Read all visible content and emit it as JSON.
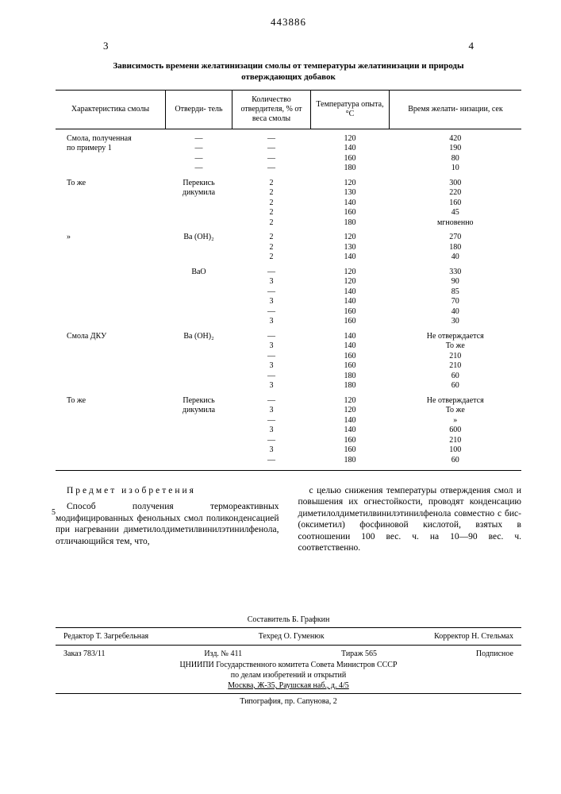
{
  "doc_number": "443886",
  "page_left": "3",
  "page_right": "4",
  "table_title_l1": "Зависимость времени желатинизации смолы от температуры желатинизации и природы",
  "table_title_l2": "отверждающих добавок",
  "columns": {
    "c1": "Характеристика смолы",
    "c2": "Отверди-\nтель",
    "c3": "Количество\nотвердителя,\n% от веса\nсмолы",
    "c4": "Температура\nопыта, °С",
    "c5": "Время желати-\nнизации, сек"
  },
  "rows": [
    {
      "a": "Смола, полученная",
      "b": "—",
      "c": "—",
      "d": "120",
      "e": "420"
    },
    {
      "a": "по примеру 1",
      "b": "—",
      "c": "—",
      "d": "140",
      "e": "190"
    },
    {
      "a": "",
      "b": "—",
      "c": "—",
      "d": "160",
      "e": "80"
    },
    {
      "a": "",
      "b": "—",
      "c": "—",
      "d": "180",
      "e": "10"
    },
    {
      "a": "То же",
      "b": "Перекись",
      "c": "2",
      "d": "120",
      "e": "300"
    },
    {
      "a": "",
      "b": "дикумила",
      "c": "2",
      "d": "130",
      "e": "220"
    },
    {
      "a": "",
      "b": "",
      "c": "2",
      "d": "140",
      "e": "160"
    },
    {
      "a": "",
      "b": "",
      "c": "2",
      "d": "160",
      "e": "45"
    },
    {
      "a": "",
      "b": "",
      "c": "2",
      "d": "180",
      "e": "мгновенно"
    },
    {
      "a": "»",
      "b": "Ba (OH)₂",
      "c": "2",
      "d": "120",
      "e": "270"
    },
    {
      "a": "",
      "b": "",
      "c": "2",
      "d": "130",
      "e": "180"
    },
    {
      "a": "",
      "b": "",
      "c": "2",
      "d": "140",
      "e": "40"
    },
    {
      "a": "",
      "b": "BaO",
      "c": "—",
      "d": "120",
      "e": "330"
    },
    {
      "a": "",
      "b": "",
      "c": "3",
      "d": "120",
      "e": "90"
    },
    {
      "a": "",
      "b": "",
      "c": "—",
      "d": "140",
      "e": "85"
    },
    {
      "a": "",
      "b": "",
      "c": "3",
      "d": "140",
      "e": "70"
    },
    {
      "a": "",
      "b": "",
      "c": "—",
      "d": "160",
      "e": "40"
    },
    {
      "a": "",
      "b": "",
      "c": "3",
      "d": "160",
      "e": "30"
    },
    {
      "a": "Смола ДКУ",
      "b": "Ba (OH)₂",
      "c": "—",
      "d": "140",
      "e": "Не отверждается"
    },
    {
      "a": "",
      "b": "",
      "c": "3",
      "d": "140",
      "e": "То же"
    },
    {
      "a": "",
      "b": "",
      "c": "—",
      "d": "160",
      "e": "210"
    },
    {
      "a": "",
      "b": "",
      "c": "3",
      "d": "160",
      "e": "210"
    },
    {
      "a": "",
      "b": "",
      "c": "—",
      "d": "180",
      "e": "60"
    },
    {
      "a": "",
      "b": "",
      "c": "3",
      "d": "180",
      "e": "60"
    },
    {
      "a": "То же",
      "b": "Перекись",
      "c": "—",
      "d": "120",
      "e": "Не отверждается"
    },
    {
      "a": "",
      "b": "дикумила",
      "c": "3",
      "d": "120",
      "e": "То же"
    },
    {
      "a": "",
      "b": "",
      "c": "—",
      "d": "140",
      "e": "»"
    },
    {
      "a": "",
      "b": "",
      "c": "3",
      "d": "140",
      "e": "600"
    },
    {
      "a": "",
      "b": "",
      "c": "—",
      "d": "160",
      "e": "210"
    },
    {
      "a": "",
      "b": "",
      "c": "3",
      "d": "160",
      "e": "100"
    },
    {
      "a": "",
      "b": "",
      "c": "—",
      "d": "180",
      "e": "60"
    }
  ],
  "subject_heading": "Предмет изобретения",
  "left_para": "Способ получения термореактивных модифицированных фенольных смол поликонденсацией при нагревании диметилолдиметилвинилэтинилфенола, отличающийся тем, что,",
  "right_para": "с целью снижения температуры отверждения смол и повышения их огнестойкости, проводят конденсацию диметилолдиметилвинилэтинилфенола совместно с бис-(оксиметил) фосфиновой кислотой, взятых в соотношении 100 вес. ч. на 10—90 вес. ч. соответственно.",
  "marginal": "5",
  "footer": {
    "composer": "Составитель Б. Графкин",
    "editor": "Редактор Т. Загребельная",
    "tech": "Техред О. Гуменюк",
    "corrector": "Корректор Н. Стельмах",
    "order": "Заказ 783/11",
    "izd": "Изд. № 411",
    "tirazh": "Тираж 565",
    "sub": "Подписное",
    "org1": "ЦНИИПИ Государственного комитета Совета Министров СССР",
    "org2": "по делам изобретений и открытий",
    "addr": "Москва, Ж-35, Раушская наб., д. 4/5",
    "print": "Типография, пр. Сапунова, 2"
  }
}
